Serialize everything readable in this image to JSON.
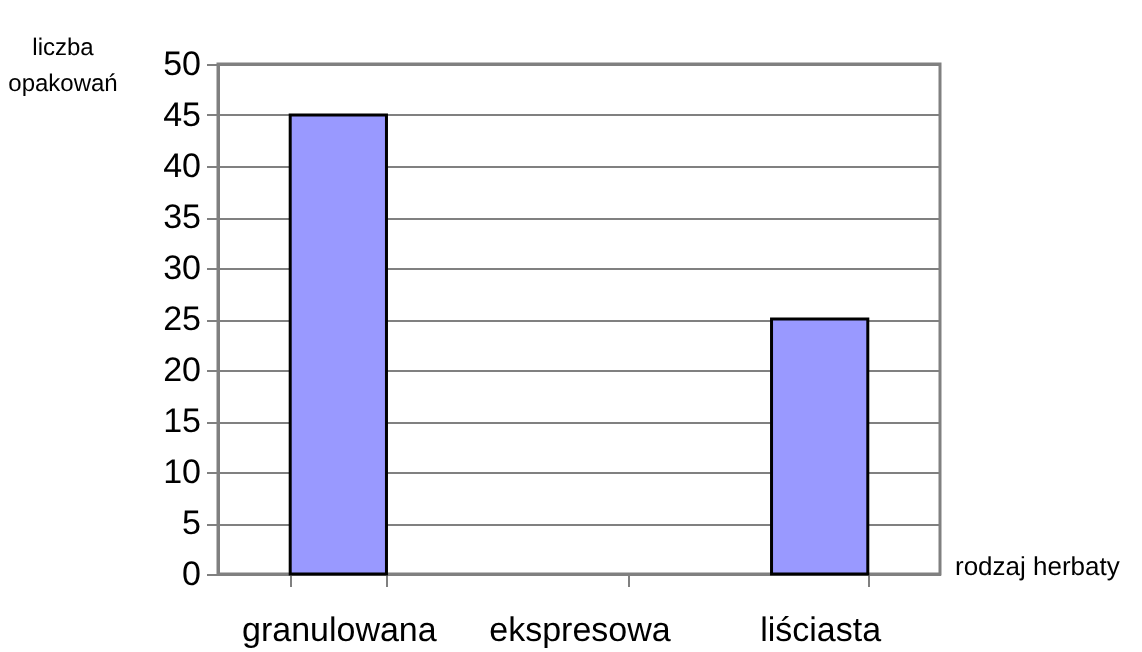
{
  "chart_data": {
    "type": "bar",
    "xlabel": "rodzaj herbaty",
    "ylabel": "liczba opakowań",
    "categories": [
      "granulowana",
      "ekspresowa",
      "liściasta"
    ],
    "values": [
      45,
      0,
      25
    ],
    "color": "#9999ff",
    "ylim": [
      0,
      50
    ],
    "yticks": [
      0,
      5,
      10,
      15,
      20,
      25,
      30,
      35,
      40,
      45,
      50
    ],
    "grid": "y"
  }
}
